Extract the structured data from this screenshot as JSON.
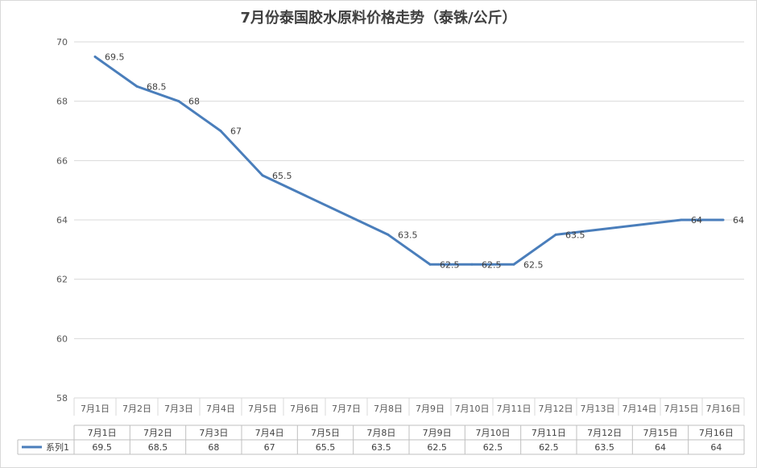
{
  "chart_data": {
    "type": "line",
    "title": "7月份泰国胶水原料价格走势（泰铢/公斤）",
    "xlabel": "",
    "ylabel": "",
    "ylim": [
      58,
      70
    ],
    "yticks": [
      58,
      60,
      62,
      64,
      66,
      68,
      70
    ],
    "categories": [
      "7月1日",
      "7月2日",
      "7月3日",
      "7月4日",
      "7月5日",
      "7月6日",
      "7月7日",
      "7月8日",
      "7月9日",
      "7月10日",
      "7月11日",
      "7月12日",
      "7月13日",
      "7月14日",
      "7月15日",
      "7月16日"
    ],
    "series": [
      {
        "name": "系列1",
        "color": "#4a7ebb",
        "x": [
          "7月1日",
          "7月2日",
          "7月3日",
          "7月4日",
          "7月5日",
          "7月8日",
          "7月9日",
          "7月10日",
          "7月11日",
          "7月12日",
          "7月15日",
          "7月16日"
        ],
        "values": [
          69.5,
          68.5,
          68,
          67,
          65.5,
          63.5,
          62.5,
          62.5,
          62.5,
          63.5,
          64,
          64
        ]
      }
    ],
    "grid": true,
    "data_table": {
      "header": [
        "7月1日",
        "7月2日",
        "7月3日",
        "7月4日",
        "7月5日",
        "7月8日",
        "7月9日",
        "7月10日",
        "7月11日",
        "7月12日",
        "7月15日",
        "7月16日"
      ],
      "rows": [
        {
          "series": "系列1",
          "values": [
            "69.5",
            "68.5",
            "68",
            "67",
            "65.5",
            "63.5",
            "62.5",
            "62.5",
            "62.5",
            "63.5",
            "64",
            "64"
          ]
        }
      ]
    }
  }
}
